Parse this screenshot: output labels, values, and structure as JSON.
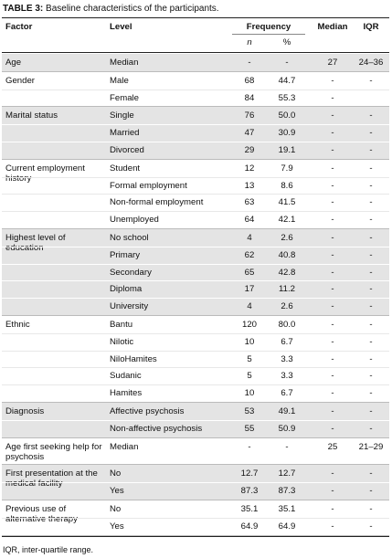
{
  "title": {
    "label": "TABLE 3:",
    "text": "Baseline characteristics of the participants."
  },
  "header": {
    "factor": "Factor",
    "level": "Level",
    "frequency": "Frequency",
    "n": "n",
    "percent": "%",
    "median": "Median",
    "iqr": "IQR"
  },
  "groups": [
    {
      "factor": "Age",
      "rows": [
        [
          "Median",
          "-",
          "-",
          "27",
          "24–36"
        ]
      ]
    },
    {
      "factor": "Gender",
      "rows": [
        [
          "Male",
          "68",
          "44.7",
          "-",
          "-"
        ],
        [
          "Female",
          "84",
          "55.3",
          "-",
          null
        ]
      ]
    },
    {
      "factor": "Marital status",
      "rows": [
        [
          "Single",
          "76",
          "50.0",
          "-",
          "-"
        ],
        [
          "Married",
          "47",
          "30.9",
          "-",
          "-"
        ],
        [
          "Divorced",
          "29",
          "19.1",
          "-",
          "-"
        ]
      ]
    },
    {
      "factor": "Current employment history",
      "rows": [
        [
          "Student",
          "12",
          "7.9",
          "-",
          "-"
        ],
        [
          "Formal employment",
          "13",
          "8.6",
          "-",
          "-"
        ],
        [
          "Non-formal employment",
          "63",
          "41.5",
          "-",
          "-"
        ],
        [
          "Unemployed",
          "64",
          "42.1",
          "-",
          "-"
        ]
      ]
    },
    {
      "factor": "Highest level of education",
      "rows": [
        [
          "No school",
          "4",
          "2.6",
          "-",
          "-"
        ],
        [
          "Primary",
          "62",
          "40.8",
          "-",
          "-"
        ],
        [
          "Secondary",
          "65",
          "42.8",
          "-",
          "-"
        ],
        [
          "Diploma",
          "17",
          "11.2",
          "-",
          "-"
        ],
        [
          "University",
          "4",
          "2.6",
          "-",
          "-"
        ]
      ]
    },
    {
      "factor": "Ethnic",
      "rows": [
        [
          "Bantu",
          "120",
          "80.0",
          "-",
          "-"
        ],
        [
          "Nilotic",
          "10",
          "6.7",
          "-",
          "-"
        ],
        [
          "NiloHamites",
          "5",
          "3.3",
          "-",
          "-"
        ],
        [
          "Sudanic",
          "5",
          "3.3",
          "-",
          "-"
        ],
        [
          "Hamites",
          "10",
          "6.7",
          "-",
          "-"
        ]
      ]
    },
    {
      "factor": "Diagnosis",
      "rows": [
        [
          "Affective psychosis",
          "53",
          "49.1",
          "-",
          "-"
        ],
        [
          "Non-affective psychosis",
          "55",
          "50.9",
          "-",
          "-"
        ]
      ]
    },
    {
      "factor": "Age first seeking help for psychosis",
      "rows": [
        [
          "Median",
          "-",
          "-",
          "25",
          "21–29"
        ]
      ]
    },
    {
      "factor": "First presentation at the medical facility",
      "rows": [
        [
          "No",
          "12.7",
          "12.7",
          "-",
          "-"
        ],
        [
          "Yes",
          "87.3",
          "87.3",
          "-",
          "-"
        ]
      ]
    },
    {
      "factor": "Previous use of alternative therapy",
      "rows": [
        [
          "No",
          "35.1",
          "35.1",
          "-",
          "-"
        ],
        [
          "Yes",
          "64.9",
          "64.9",
          "-",
          "-"
        ]
      ]
    }
  ],
  "footnote": "IQR, inter-quartile range."
}
